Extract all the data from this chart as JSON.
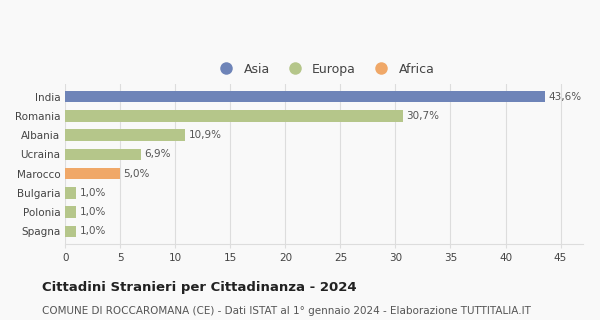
{
  "categories": [
    "India",
    "Romania",
    "Albania",
    "Ucraina",
    "Marocco",
    "Bulgaria",
    "Polonia",
    "Spagna"
  ],
  "values": [
    43.6,
    30.7,
    10.9,
    6.9,
    5.0,
    1.0,
    1.0,
    1.0
  ],
  "labels": [
    "43,6%",
    "30,7%",
    "10,9%",
    "6,9%",
    "5,0%",
    "1,0%",
    "1,0%",
    "1,0%"
  ],
  "colors": [
    "#6e84b8",
    "#b5c68a",
    "#b5c68a",
    "#b5c68a",
    "#f0a868",
    "#b5c68a",
    "#b5c68a",
    "#b5c68a"
  ],
  "legend_labels": [
    "Asia",
    "Europa",
    "Africa"
  ],
  "legend_colors": [
    "#6e84b8",
    "#b5c68a",
    "#f0a868"
  ],
  "xlim": [
    0,
    47
  ],
  "xticks": [
    0,
    5,
    10,
    15,
    20,
    25,
    30,
    35,
    40,
    45
  ],
  "title": "Cittadini Stranieri per Cittadinanza - 2024",
  "subtitle": "COMUNE DI ROCCAROMANA (CE) - Dati ISTAT al 1° gennaio 2024 - Elaborazione TUTTITALIA.IT",
  "title_fontsize": 9.5,
  "subtitle_fontsize": 7.5,
  "label_fontsize": 7.5,
  "tick_fontsize": 7.5,
  "legend_fontsize": 9,
  "bar_height": 0.6,
  "bg_color": "#f9f9f9",
  "grid_color": "#dddddd"
}
